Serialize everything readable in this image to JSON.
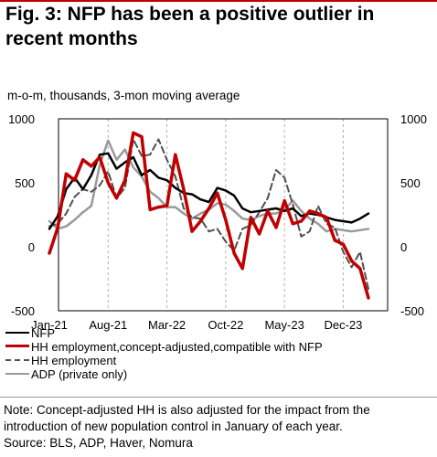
{
  "header": {
    "title": "Fig. 3: NFP has been a positive outlier in recent months",
    "subtitle": "m-o-m, thousands, 3-mon moving average"
  },
  "chart_data": {
    "type": "line",
    "title": "Fig. 3: NFP has been a positive outlier in recent months",
    "ylabel": "m-o-m, thousands, 3-mon moving average",
    "ylim": [
      -500,
      1000
    ],
    "y_ticks": [
      "1000",
      "500",
      "0",
      "-500"
    ],
    "x_tick_labels": [
      "Jan-21",
      "Aug-21",
      "Mar-22",
      "Oct-22",
      "May-23",
      "Dec-23"
    ],
    "grid": "vertical dashed at x ticks",
    "dual_axis": "same scale left and right",
    "categories": [
      "Jan-21",
      "Feb-21",
      "Mar-21",
      "Apr-21",
      "May-21",
      "Jun-21",
      "Jul-21",
      "Aug-21",
      "Sep-21",
      "Oct-21",
      "Nov-21",
      "Dec-21",
      "Jan-22",
      "Feb-22",
      "Mar-22",
      "Apr-22",
      "May-22",
      "Jun-22",
      "Jul-22",
      "Aug-22",
      "Sep-22",
      "Oct-22",
      "Nov-22",
      "Dec-22",
      "Jan-23",
      "Feb-23",
      "Mar-23",
      "Apr-23",
      "May-23",
      "Jun-23",
      "Jul-23",
      "Aug-23",
      "Sep-23",
      "Oct-23",
      "Nov-23",
      "Dec-23",
      "Jan-24",
      "Feb-24",
      "Mar-24"
    ],
    "series": [
      {
        "name": "NFP",
        "color": "#000000",
        "dash": "solid",
        "width": 2.5,
        "values": [
          140,
          240,
          450,
          540,
          450,
          560,
          720,
          730,
          610,
          660,
          700,
          560,
          600,
          540,
          520,
          460,
          420,
          410,
          370,
          350,
          460,
          440,
          400,
          300,
          270,
          280,
          290,
          300,
          280,
          300,
          240,
          260,
          250,
          230,
          210,
          200,
          190,
          220,
          260
        ]
      },
      {
        "name": "HH employment,concept-adjusted,compatible with NFP",
        "color": "#c00000",
        "dash": "solid",
        "width": 3.5,
        "values": [
          -50,
          150,
          570,
          520,
          680,
          630,
          700,
          500,
          380,
          520,
          890,
          860,
          290,
          310,
          320,
          720,
          450,
          120,
          200,
          300,
          420,
          210,
          -50,
          -170,
          230,
          100,
          280,
          150,
          360,
          180,
          200,
          280,
          260,
          230,
          50,
          20,
          -110,
          -170,
          -400
        ]
      },
      {
        "name": "HH employment",
        "color": "#505050",
        "dash": "dashed",
        "width": 2,
        "values": [
          160,
          180,
          260,
          390,
          450,
          430,
          480,
          590,
          380,
          460,
          840,
          710,
          720,
          840,
          680,
          550,
          300,
          230,
          220,
          120,
          140,
          40,
          -30,
          140,
          170,
          270,
          380,
          600,
          540,
          330,
          80,
          120,
          320,
          180,
          150,
          -40,
          -160,
          -40,
          -330
        ]
      },
      {
        "name": "ADP (private only)",
        "color": "#9a9a9a",
        "dash": "solid",
        "width": 2.5,
        "values": [
          200,
          140,
          160,
          210,
          270,
          320,
          640,
          830,
          680,
          760,
          620,
          550,
          430,
          380,
          310,
          310,
          260,
          220,
          260,
          290,
          340,
          330,
          280,
          220,
          210,
          240,
          260,
          260,
          290,
          360,
          280,
          220,
          180,
          120,
          140,
          130,
          120,
          130,
          140
        ]
      }
    ]
  },
  "note": {
    "line1": "Note: Concept-adjusted HH is also adjusted for the impact from the introduction of new population control in January of each year.",
    "line2": "Source: BLS, ADP, Haver, Nomura"
  }
}
